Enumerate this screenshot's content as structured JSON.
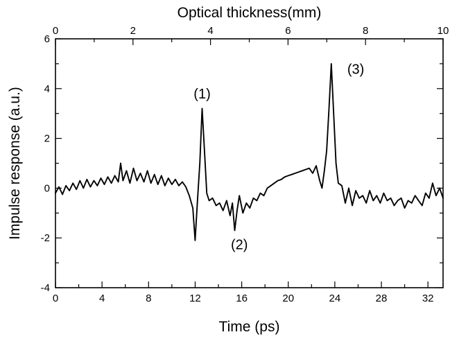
{
  "chart_data": {
    "type": "line",
    "title": "",
    "xlabel": "Time (ps)",
    "ylabel": "Impulse response (a.u.)",
    "x2label": "Optical thickness(mm)",
    "xlim": [
      0,
      33.3
    ],
    "ylim": [
      -4,
      6
    ],
    "x2lim": [
      0,
      10
    ],
    "xticks": [
      0,
      4,
      8,
      12,
      16,
      20,
      24,
      28,
      32
    ],
    "xtick_labels": [
      "0",
      "4",
      "8",
      "12",
      "16",
      "20",
      "24",
      "28",
      "32"
    ],
    "yticks": [
      -4,
      -2,
      0,
      2,
      4,
      6
    ],
    "ytick_labels": [
      "-4",
      "-2",
      "0",
      "2",
      "4",
      "6"
    ],
    "x2ticks": [
      0,
      2,
      4,
      6,
      8,
      10
    ],
    "x2tick_labels": [
      "0",
      "2",
      "4",
      "6",
      "8",
      "10"
    ],
    "x_minor_step": 2,
    "y_minor_step": 1,
    "x2_minor_step": 1,
    "grid": false,
    "legend": "none",
    "annotations": [
      {
        "text": "(1)",
        "x": 12.6,
        "y": 3.6
      },
      {
        "text": "(2)",
        "x": 15.8,
        "y": -2.45
      },
      {
        "text": "(3)",
        "x": 25.8,
        "y": 4.6
      }
    ],
    "series": [
      {
        "x": [
          0,
          0.3,
          0.6,
          0.9,
          1.2,
          1.5,
          1.8,
          2.1,
          2.4,
          2.7,
          3.0,
          3.3,
          3.6,
          3.9,
          4.2,
          4.5,
          4.8,
          5.1,
          5.4,
          5.6,
          5.8,
          6.1,
          6.4,
          6.7,
          7.0,
          7.3,
          7.6,
          7.9,
          8.2,
          8.5,
          8.8,
          9.1,
          9.4,
          9.7,
          10.0,
          10.3,
          10.6,
          10.9,
          11.2,
          11.5,
          11.8,
          12.0,
          12.2,
          12.4,
          12.6,
          12.8,
          13.0,
          13.2,
          13.5,
          13.8,
          14.1,
          14.4,
          14.7,
          15.0,
          15.2,
          15.4,
          15.6,
          15.8,
          16.1,
          16.4,
          16.7,
          17.0,
          17.3,
          17.6,
          17.9,
          18.2,
          18.5,
          18.8,
          19.1,
          19.4,
          19.7,
          20.0,
          20.3,
          20.6,
          20.9,
          21.2,
          21.5,
          21.8,
          22.1,
          22.4,
          22.7,
          22.9,
          23.1,
          23.3,
          23.5,
          23.7,
          23.9,
          24.1,
          24.3,
          24.6,
          24.9,
          25.2,
          25.5,
          25.8,
          26.1,
          26.4,
          26.7,
          27.0,
          27.3,
          27.6,
          27.9,
          28.2,
          28.5,
          28.8,
          29.1,
          29.4,
          29.7,
          30.0,
          30.3,
          30.6,
          30.9,
          31.2,
          31.5,
          31.8,
          32.1,
          32.4,
          32.7,
          33.0,
          33.3
        ],
        "values": [
          -0.2,
          0.05,
          -0.25,
          0.1,
          -0.1,
          0.2,
          -0.05,
          0.3,
          0.0,
          0.35,
          0.05,
          0.3,
          0.1,
          0.4,
          0.15,
          0.45,
          0.2,
          0.5,
          0.25,
          1.0,
          0.3,
          0.7,
          0.2,
          0.8,
          0.3,
          0.6,
          0.25,
          0.7,
          0.2,
          0.55,
          0.15,
          0.5,
          0.1,
          0.4,
          0.15,
          0.35,
          0.1,
          0.25,
          0.05,
          -0.3,
          -0.8,
          -2.1,
          -0.5,
          1.0,
          3.2,
          1.5,
          -0.2,
          -0.5,
          -0.4,
          -0.7,
          -0.6,
          -0.9,
          -0.5,
          -1.1,
          -0.6,
          -1.7,
          -0.9,
          -0.3,
          -1.0,
          -0.6,
          -0.8,
          -0.4,
          -0.5,
          -0.2,
          -0.3,
          0.0,
          0.1,
          0.2,
          0.3,
          0.35,
          0.45,
          0.5,
          0.55,
          0.6,
          0.65,
          0.7,
          0.75,
          0.8,
          0.6,
          0.9,
          0.3,
          0.0,
          0.7,
          1.5,
          3.2,
          5.0,
          3.0,
          1.0,
          0.2,
          0.1,
          -0.6,
          0.0,
          -0.7,
          -0.1,
          -0.4,
          -0.3,
          -0.6,
          -0.1,
          -0.5,
          -0.3,
          -0.6,
          -0.2,
          -0.5,
          -0.4,
          -0.7,
          -0.5,
          -0.4,
          -0.8,
          -0.5,
          -0.6,
          -0.3,
          -0.5,
          -0.7,
          -0.2,
          -0.4,
          0.2,
          -0.3,
          0.0,
          -0.4
        ]
      }
    ]
  }
}
